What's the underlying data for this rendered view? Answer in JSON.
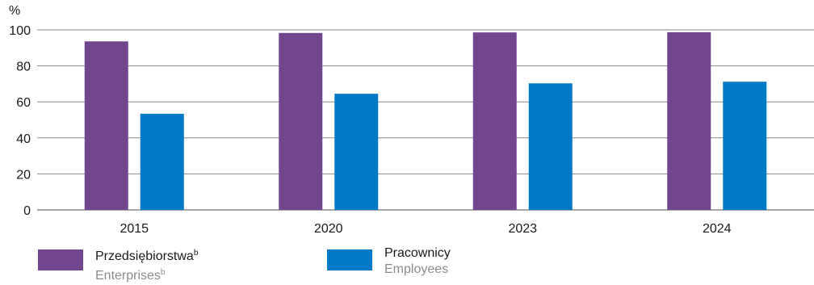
{
  "chart_data": {
    "type": "bar",
    "unit_label": "%",
    "categories": [
      "2015",
      "2020",
      "2023",
      "2024"
    ],
    "series": [
      {
        "name": "Przedsiębiorstwa",
        "name_secondary": "Enterprises",
        "footnote": "b",
        "color": "#71468F",
        "values": [
          93.6,
          98.3,
          98.6,
          98.7
        ]
      },
      {
        "name": "Pracownicy",
        "name_secondary": "Employees",
        "footnote": "",
        "color": "#0079C6",
        "values": [
          53.4,
          64.5,
          70.3,
          71.2
        ]
      }
    ],
    "ylim": [
      0,
      100
    ],
    "yticks": [
      0,
      20,
      40,
      60,
      80,
      100
    ],
    "grid": true,
    "legend_position": "bottom-left"
  }
}
